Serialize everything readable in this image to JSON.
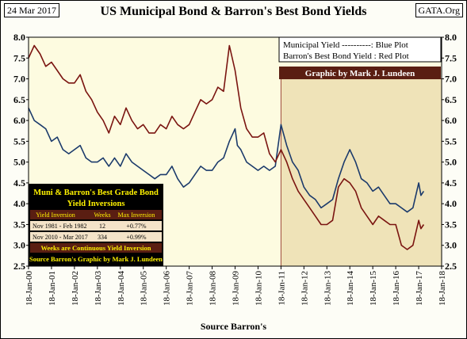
{
  "header": {
    "date": "24 Mar 2017",
    "title": "US Municipal Bond & Barron's Best Bond Yields",
    "site": "GATA.Org"
  },
  "legend": {
    "line1": "Municipal Yield ----------: Blue Plot",
    "line2": "Barron's Best Bond Yield : Red Plot",
    "credit": "Graphic by Mark J. Lundeen"
  },
  "inset_table": {
    "title1": "Muni & Barron's Best Grade Bond",
    "title2": "Yield Inversions",
    "headers": [
      "Yield Inversion",
      "Weeks",
      "Max Inversion"
    ],
    "rows": [
      [
        "Nov 1981 - Feb 1982",
        "12",
        "+0.77%"
      ],
      [
        "Nov 2010 - Mar 2017",
        "334",
        "+0.99%"
      ]
    ],
    "footer1": "Weeks are Continuous Yield Inversion",
    "footer2": "Source Barron's Graphic by Mark J. Lundeen"
  },
  "colors": {
    "municipal": "#1b3a6b",
    "barrons": "#7a1410",
    "plot_bg": "#fdfbe0",
    "highlight_bg": "#efe3b8",
    "highlight_border": "#9c4a3a",
    "table_bg": "#f4e3c8",
    "table_header": "#5a1e12",
    "table_gold": "#fff200"
  },
  "chart_data": {
    "type": "line",
    "title": "US Municipal Bond & Barron's Best Bond Yields",
    "xlabel": "Source Barron's",
    "ylabel": "",
    "x_ticks": [
      "18-Jan-00",
      "18-Jan-01",
      "18-Jan-02",
      "18-Jan-03",
      "18-Jan-04",
      "18-Jan-05",
      "18-Jan-06",
      "18-Jan-07",
      "18-Jan-08",
      "18-Jan-09",
      "18-Jan-10",
      "18-Jan-11",
      "18-Jan-12",
      "18-Jan-13",
      "18-Jan-14",
      "18-Jan-15",
      "18-Jan-16",
      "18-Jan-17",
      "18-Jan-18"
    ],
    "xlim": [
      2000,
      2018
    ],
    "ylim": [
      2.5,
      8.0
    ],
    "y_ticks": [
      "2.5",
      "3.0",
      "3.5",
      "4.0",
      "4.5",
      "5.0",
      "5.5",
      "6.0",
      "6.5",
      "7.0",
      "7.5",
      "8.0"
    ],
    "grid": false,
    "highlight_region": [
      2011.0,
      2018.0
    ],
    "series": [
      {
        "name": "Municipal Yield",
        "color": "#1b3a6b",
        "points": [
          [
            2000.0,
            6.3
          ],
          [
            2000.25,
            6.0
          ],
          [
            2000.5,
            5.9
          ],
          [
            2000.75,
            5.8
          ],
          [
            2001.0,
            5.5
          ],
          [
            2001.25,
            5.6
          ],
          [
            2001.5,
            5.3
          ],
          [
            2001.75,
            5.2
          ],
          [
            2002.0,
            5.3
          ],
          [
            2002.25,
            5.4
          ],
          [
            2002.5,
            5.1
          ],
          [
            2002.75,
            5.0
          ],
          [
            2003.0,
            5.0
          ],
          [
            2003.25,
            5.1
          ],
          [
            2003.5,
            4.9
          ],
          [
            2003.75,
            5.1
          ],
          [
            2004.0,
            4.9
          ],
          [
            2004.25,
            5.2
          ],
          [
            2004.5,
            5.0
          ],
          [
            2004.75,
            4.9
          ],
          [
            2005.0,
            4.8
          ],
          [
            2005.25,
            4.7
          ],
          [
            2005.5,
            4.6
          ],
          [
            2005.75,
            4.7
          ],
          [
            2006.0,
            4.7
          ],
          [
            2006.25,
            4.9
          ],
          [
            2006.5,
            4.6
          ],
          [
            2006.75,
            4.4
          ],
          [
            2007.0,
            4.5
          ],
          [
            2007.25,
            4.7
          ],
          [
            2007.5,
            4.9
          ],
          [
            2007.75,
            4.8
          ],
          [
            2008.0,
            4.8
          ],
          [
            2008.25,
            5.0
          ],
          [
            2008.5,
            5.1
          ],
          [
            2008.75,
            5.5
          ],
          [
            2009.0,
            5.8
          ],
          [
            2009.1,
            5.4
          ],
          [
            2009.25,
            5.3
          ],
          [
            2009.5,
            5.0
          ],
          [
            2009.75,
            4.9
          ],
          [
            2010.0,
            4.8
          ],
          [
            2010.25,
            4.9
          ],
          [
            2010.5,
            4.8
          ],
          [
            2010.75,
            4.9
          ],
          [
            2011.0,
            5.9
          ],
          [
            2011.25,
            5.4
          ],
          [
            2011.5,
            5.0
          ],
          [
            2011.75,
            4.8
          ],
          [
            2012.0,
            4.4
          ],
          [
            2012.25,
            4.2
          ],
          [
            2012.5,
            4.1
          ],
          [
            2012.75,
            3.9
          ],
          [
            2013.0,
            4.0
          ],
          [
            2013.25,
            4.1
          ],
          [
            2013.5,
            4.6
          ],
          [
            2013.75,
            5.0
          ],
          [
            2014.0,
            5.3
          ],
          [
            2014.25,
            5.0
          ],
          [
            2014.5,
            4.6
          ],
          [
            2014.75,
            4.5
          ],
          [
            2015.0,
            4.3
          ],
          [
            2015.25,
            4.4
          ],
          [
            2015.5,
            4.2
          ],
          [
            2015.75,
            4.0
          ],
          [
            2016.0,
            4.0
          ],
          [
            2016.25,
            3.9
          ],
          [
            2016.5,
            3.8
          ],
          [
            2016.75,
            3.9
          ],
          [
            2017.0,
            4.5
          ],
          [
            2017.1,
            4.2
          ],
          [
            2017.22,
            4.3
          ]
        ]
      },
      {
        "name": "Barron's Best Bond Yield",
        "color": "#7a1410",
        "points": [
          [
            2000.0,
            7.5
          ],
          [
            2000.25,
            7.8
          ],
          [
            2000.5,
            7.6
          ],
          [
            2000.75,
            7.3
          ],
          [
            2001.0,
            7.4
          ],
          [
            2001.25,
            7.2
          ],
          [
            2001.5,
            7.0
          ],
          [
            2001.75,
            6.9
          ],
          [
            2002.0,
            6.9
          ],
          [
            2002.25,
            7.1
          ],
          [
            2002.5,
            6.7
          ],
          [
            2002.75,
            6.5
          ],
          [
            2003.0,
            6.2
          ],
          [
            2003.25,
            6.0
          ],
          [
            2003.5,
            5.7
          ],
          [
            2003.75,
            6.1
          ],
          [
            2004.0,
            5.9
          ],
          [
            2004.25,
            6.3
          ],
          [
            2004.5,
            6.0
          ],
          [
            2004.75,
            5.8
          ],
          [
            2005.0,
            5.9
          ],
          [
            2005.25,
            5.7
          ],
          [
            2005.5,
            5.7
          ],
          [
            2005.75,
            5.9
          ],
          [
            2006.0,
            5.8
          ],
          [
            2006.25,
            6.1
          ],
          [
            2006.5,
            5.9
          ],
          [
            2006.75,
            5.8
          ],
          [
            2007.0,
            5.9
          ],
          [
            2007.25,
            6.2
          ],
          [
            2007.5,
            6.5
          ],
          [
            2007.75,
            6.4
          ],
          [
            2008.0,
            6.5
          ],
          [
            2008.25,
            6.8
          ],
          [
            2008.5,
            6.7
          ],
          [
            2008.75,
            7.8
          ],
          [
            2009.0,
            7.2
          ],
          [
            2009.25,
            6.3
          ],
          [
            2009.5,
            5.8
          ],
          [
            2009.75,
            5.6
          ],
          [
            2010.0,
            5.6
          ],
          [
            2010.25,
            5.7
          ],
          [
            2010.5,
            5.2
          ],
          [
            2010.75,
            5.0
          ],
          [
            2011.0,
            5.3
          ],
          [
            2011.25,
            5.0
          ],
          [
            2011.5,
            4.6
          ],
          [
            2011.75,
            4.3
          ],
          [
            2012.0,
            4.1
          ],
          [
            2012.25,
            3.9
          ],
          [
            2012.5,
            3.7
          ],
          [
            2012.75,
            3.5
          ],
          [
            2013.0,
            3.5
          ],
          [
            2013.25,
            3.6
          ],
          [
            2013.5,
            4.4
          ],
          [
            2013.75,
            4.6
          ],
          [
            2014.0,
            4.5
          ],
          [
            2014.25,
            4.3
          ],
          [
            2014.5,
            3.9
          ],
          [
            2014.75,
            3.7
          ],
          [
            2015.0,
            3.5
          ],
          [
            2015.25,
            3.7
          ],
          [
            2015.5,
            3.6
          ],
          [
            2015.75,
            3.5
          ],
          [
            2016.0,
            3.5
          ],
          [
            2016.25,
            3.0
          ],
          [
            2016.5,
            2.9
          ],
          [
            2016.75,
            3.0
          ],
          [
            2017.0,
            3.6
          ],
          [
            2017.1,
            3.4
          ],
          [
            2017.22,
            3.5
          ]
        ]
      }
    ]
  }
}
